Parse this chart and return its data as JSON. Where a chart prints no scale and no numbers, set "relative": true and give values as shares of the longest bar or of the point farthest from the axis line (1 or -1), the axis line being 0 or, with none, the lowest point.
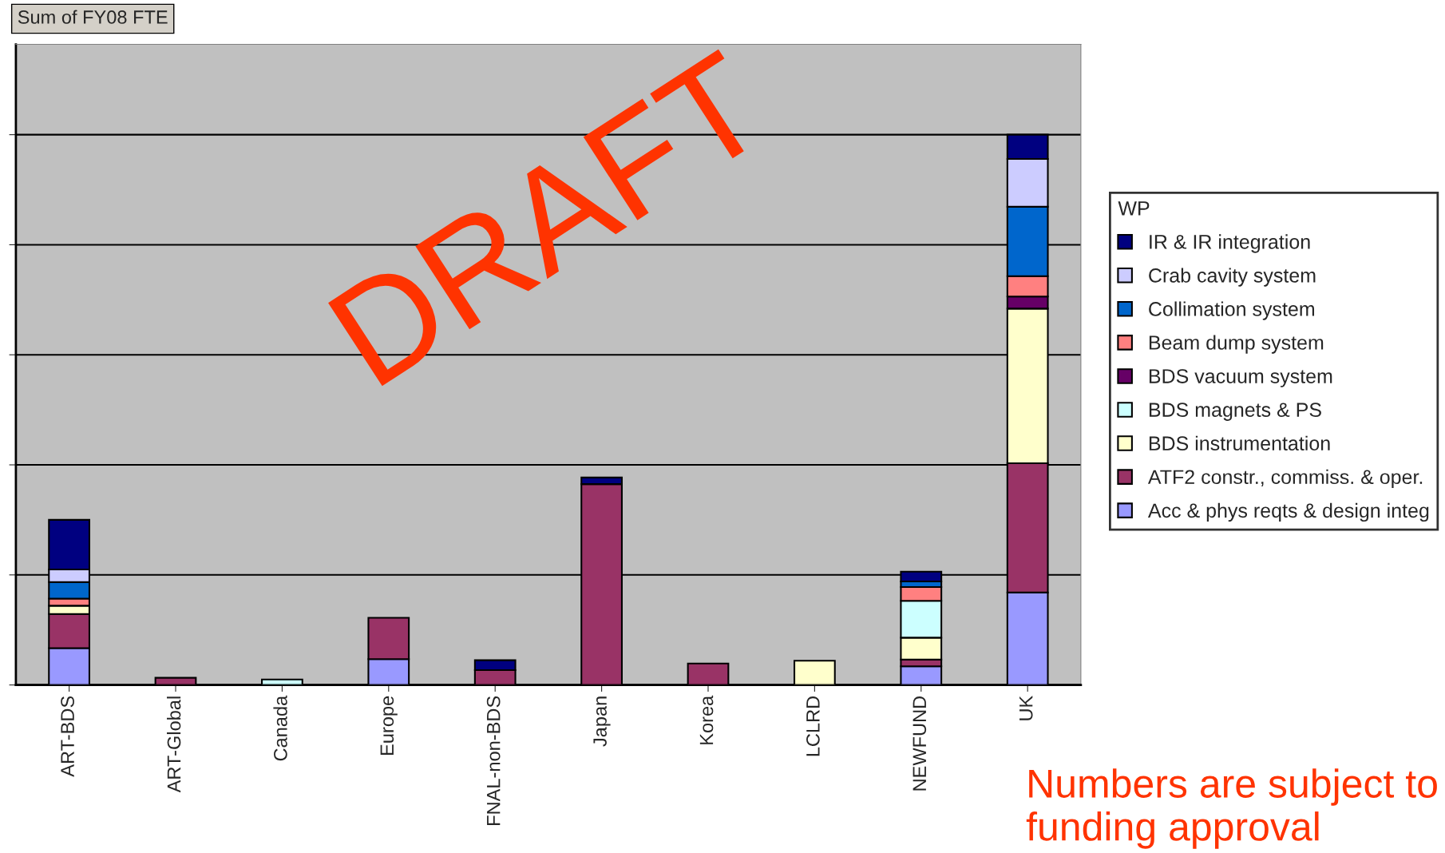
{
  "chart_data": {
    "type": "bar",
    "title": "Sum of FY08 FTE",
    "legend_title": "WP",
    "stacked": true,
    "relative": true,
    "grid": "y",
    "legend": "right",
    "categories": [
      "ART-BDS",
      "ART-Global",
      "Canada",
      "Europe",
      "FNAL-non-BDS",
      "Japan",
      "Korea",
      "LCLRD",
      "NEWFUND",
      "UK"
    ],
    "series": [
      {
        "name": "Acc & phys reqts & design integ",
        "color": "#9999ff",
        "values": [
          0.067,
          0,
          0,
          0.047,
          0,
          0,
          0,
          0,
          0.034,
          0.168
        ]
      },
      {
        "name": "ATF2 constr., commiss. & oper.",
        "color": "#993366",
        "values": [
          0.062,
          0.013,
          0,
          0.075,
          0.027,
          0.365,
          0.039,
          0,
          0.012,
          0.235
        ]
      },
      {
        "name": "BDS instrumentation",
        "color": "#ffffcc",
        "values": [
          0.015,
          0,
          0,
          0,
          0,
          0,
          0,
          0.044,
          0.04,
          0.281
        ]
      },
      {
        "name": "BDS magnets & PS",
        "color": "#ccffff",
        "values": [
          0,
          0,
          0.01,
          0,
          0,
          0,
          0,
          0,
          0.067,
          0
        ]
      },
      {
        "name": "BDS vacuum system",
        "color": "#660066",
        "values": [
          0,
          0,
          0,
          0,
          0,
          0,
          0,
          0,
          0,
          0.022
        ]
      },
      {
        "name": "Beam dump system",
        "color": "#ff8080",
        "values": [
          0.013,
          0,
          0,
          0,
          0,
          0,
          0,
          0,
          0.025,
          0.037
        ]
      },
      {
        "name": "Collimation system",
        "color": "#0066cc",
        "values": [
          0.03,
          0,
          0,
          0,
          0,
          0,
          0,
          0,
          0.01,
          0.126
        ]
      },
      {
        "name": "Crab cavity system",
        "color": "#ccccff",
        "values": [
          0.023,
          0,
          0,
          0,
          0,
          0,
          0,
          0,
          0,
          0.087
        ]
      },
      {
        "name": "IR & IR integration",
        "color": "#000080",
        "values": [
          0.09,
          0,
          0,
          0,
          0.018,
          0.012,
          0,
          0,
          0.018,
          0.044
        ]
      }
    ],
    "annotations": [
      "DRAFT",
      "Numbers are subject to funding approval"
    ]
  }
}
